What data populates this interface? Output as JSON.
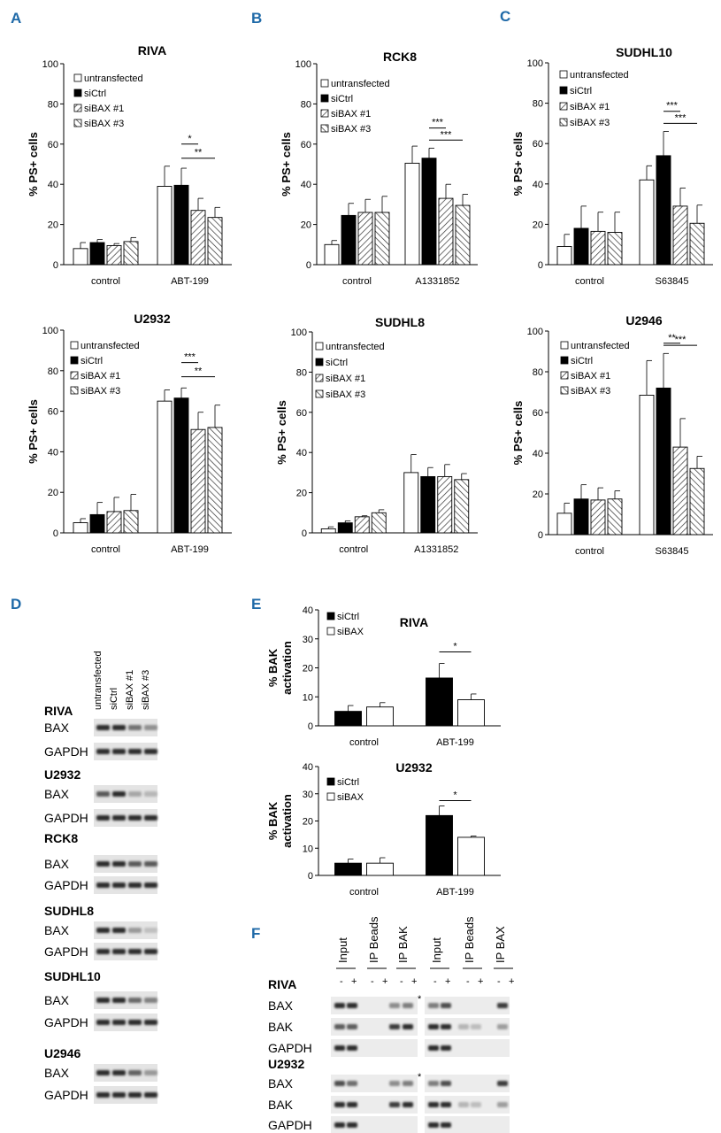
{
  "colors": {
    "panel_label": "#1f6aa8",
    "bar_dark": "#000000",
    "bar_light": "#ffffff",
    "band": "#555555"
  },
  "panel_labels": [
    "A",
    "B",
    "C",
    "D",
    "E",
    "F"
  ],
  "legend_A": [
    "untransfected",
    "siCtrl",
    "siBAX #1",
    "siBAX #3"
  ],
  "legend_E": [
    "siCtrl",
    "siBAX"
  ],
  "chart_data": [
    {
      "id": "riva",
      "panel": "A",
      "type": "bar",
      "title": "RIVA",
      "ylabel": "% PS+ cells",
      "ylim": [
        0,
        100
      ],
      "yticks": [
        0,
        20,
        40,
        60,
        80,
        100
      ],
      "categories": [
        "control",
        "ABT-199"
      ],
      "series": [
        {
          "name": "untransfected",
          "values": [
            8,
            39
          ],
          "errors": [
            3,
            10
          ]
        },
        {
          "name": "siCtrl",
          "values": [
            11,
            39.5
          ],
          "errors": [
            1.5,
            8.5
          ]
        },
        {
          "name": "siBAX #1",
          "values": [
            9.5,
            27
          ],
          "errors": [
            1,
            6
          ]
        },
        {
          "name": "siBAX #3",
          "values": [
            11.5,
            23.5
          ],
          "errors": [
            2,
            5
          ]
        }
      ],
      "significance": [
        {
          "from": 1,
          "to": 2,
          "y": 60,
          "label": "*"
        },
        {
          "from": 1,
          "to": 3,
          "y": 53,
          "label": "**"
        }
      ]
    },
    {
      "id": "rck8",
      "panel": "B",
      "type": "bar",
      "title": "RCK8",
      "ylabel": "% PS+ cells",
      "ylim": [
        0,
        100
      ],
      "yticks": [
        0,
        20,
        40,
        60,
        80,
        100
      ],
      "categories": [
        "control",
        "A1331852"
      ],
      "series": [
        {
          "name": "untransfected",
          "values": [
            10,
            50.5
          ],
          "errors": [
            2,
            8.5
          ]
        },
        {
          "name": "siCtrl",
          "values": [
            24.5,
            53
          ],
          "errors": [
            6,
            5
          ]
        },
        {
          "name": "siBAX #1",
          "values": [
            26,
            33
          ],
          "errors": [
            6.5,
            7
          ]
        },
        {
          "name": "siBAX #3",
          "values": [
            26,
            29.5
          ],
          "errors": [
            8,
            5.5
          ]
        }
      ],
      "significance": [
        {
          "from": 1,
          "to": 2,
          "y": 68,
          "label": "***"
        },
        {
          "from": 1,
          "to": 3,
          "y": 62,
          "label": "***"
        }
      ]
    },
    {
      "id": "sudhl10",
      "panel": "C",
      "type": "bar",
      "title": "SUDHL10",
      "ylabel": "% PS+ cells",
      "ylim": [
        0,
        100
      ],
      "yticks": [
        0,
        20,
        40,
        60,
        80,
        100
      ],
      "categories": [
        "control",
        "S63845"
      ],
      "series": [
        {
          "name": "untransfected",
          "values": [
            9,
            42
          ],
          "errors": [
            6,
            7
          ]
        },
        {
          "name": "siCtrl",
          "values": [
            18,
            54
          ],
          "errors": [
            11,
            12
          ]
        },
        {
          "name": "siBAX #1",
          "values": [
            16.5,
            29
          ],
          "errors": [
            9.5,
            9
          ]
        },
        {
          "name": "siBAX #3",
          "values": [
            16,
            20.5
          ],
          "errors": [
            10,
            9
          ]
        }
      ],
      "significance": [
        {
          "from": 1,
          "to": 2,
          "y": 76,
          "label": "***"
        },
        {
          "from": 1,
          "to": 3,
          "y": 70,
          "label": "***"
        }
      ]
    },
    {
      "id": "u2932",
      "panel": "A",
      "type": "bar",
      "title": "U2932",
      "ylabel": "% PS+ cells",
      "ylim": [
        0,
        100
      ],
      "yticks": [
        0,
        20,
        40,
        60,
        80,
        100
      ],
      "categories": [
        "control",
        "ABT-199"
      ],
      "series": [
        {
          "name": "untransfected",
          "values": [
            5,
            65
          ],
          "errors": [
            2,
            5.5
          ]
        },
        {
          "name": "siCtrl",
          "values": [
            9,
            66.5
          ],
          "errors": [
            6,
            5
          ]
        },
        {
          "name": "siBAX #1",
          "values": [
            10.5,
            51
          ],
          "errors": [
            7,
            8.5
          ]
        },
        {
          "name": "siBAX #3",
          "values": [
            11,
            52
          ],
          "errors": [
            8,
            11
          ]
        }
      ],
      "significance": [
        {
          "from": 1,
          "to": 2,
          "y": 84,
          "label": "***"
        },
        {
          "from": 1,
          "to": 3,
          "y": 77,
          "label": "**"
        }
      ]
    },
    {
      "id": "sudhl8",
      "panel": "B",
      "type": "bar",
      "title": "SUDHL8",
      "ylabel": "% PS+ cells",
      "ylim": [
        0,
        100
      ],
      "yticks": [
        0,
        20,
        40,
        60,
        80,
        100
      ],
      "categories": [
        "control",
        "A1331852"
      ],
      "series": [
        {
          "name": "untransfected",
          "values": [
            2,
            30
          ],
          "errors": [
            1,
            9
          ]
        },
        {
          "name": "siCtrl",
          "values": [
            5,
            28
          ],
          "errors": [
            1,
            4.5
          ]
        },
        {
          "name": "siBAX #1",
          "values": [
            8,
            28
          ],
          "errors": [
            0.5,
            6
          ]
        },
        {
          "name": "siBAX #3",
          "values": [
            10,
            26.5
          ],
          "errors": [
            1.5,
            3
          ]
        }
      ],
      "significance": []
    },
    {
      "id": "u2946",
      "panel": "C",
      "type": "bar",
      "title": "U2946",
      "ylabel": "% PS+ cells",
      "ylim": [
        0,
        100
      ],
      "yticks": [
        0,
        20,
        40,
        60,
        80,
        100
      ],
      "categories": [
        "control",
        "S63845"
      ],
      "series": [
        {
          "name": "untransfected",
          "values": [
            10.5,
            68.5
          ],
          "errors": [
            5,
            17
          ]
        },
        {
          "name": "siCtrl",
          "values": [
            17.5,
            72
          ],
          "errors": [
            7,
            17
          ]
        },
        {
          "name": "siBAX #1",
          "values": [
            17,
            43
          ],
          "errors": [
            6,
            14
          ]
        },
        {
          "name": "siBAX #3",
          "values": [
            17.5,
            32.5
          ],
          "errors": [
            4,
            6
          ]
        }
      ],
      "significance": [
        {
          "from": 1,
          "to": 2,
          "y": 94,
          "label": "**"
        },
        {
          "from": 1,
          "to": 3,
          "y": 93,
          "label": "***"
        }
      ]
    },
    {
      "id": "bak_riva",
      "panel": "E",
      "type": "bar",
      "title": "RIVA",
      "ylabel": "% BAK activation",
      "ylim": [
        0,
        40
      ],
      "yticks": [
        0,
        10,
        20,
        30,
        40
      ],
      "categories": [
        "control",
        "ABT-199"
      ],
      "series": [
        {
          "name": "siCtrl",
          "values": [
            5,
            16.5
          ],
          "errors": [
            2,
            5
          ]
        },
        {
          "name": "siBAX",
          "values": [
            6.5,
            9
          ],
          "errors": [
            1.5,
            2
          ]
        }
      ],
      "significance": [
        {
          "from": 0,
          "to": 1,
          "y": 25.5,
          "label": "*"
        }
      ]
    },
    {
      "id": "bak_u2932",
      "panel": "E",
      "type": "bar",
      "title": "U2932",
      "ylabel": "% BAK activation",
      "ylim": [
        0,
        40
      ],
      "yticks": [
        0,
        10,
        20,
        30,
        40
      ],
      "categories": [
        "control",
        "ABT-199"
      ],
      "series": [
        {
          "name": "siCtrl",
          "values": [
            4.5,
            22
          ],
          "errors": [
            1.5,
            3.5
          ]
        },
        {
          "name": "siBAX",
          "values": [
            4.5,
            14
          ],
          "errors": [
            2,
            0.5
          ]
        }
      ],
      "significance": [
        {
          "from": 0,
          "to": 1,
          "y": 27.5,
          "label": "*"
        }
      ]
    }
  ],
  "panel_D": {
    "lanes": [
      "untransfected",
      "siCtrl",
      "siBAX #1",
      "siBAX #3"
    ],
    "blots": [
      {
        "cell": "RIVA",
        "bax": [
          1,
          1,
          0.55,
          0.35
        ],
        "gapdh": [
          1,
          1,
          1,
          1
        ]
      },
      {
        "cell": "U2932",
        "bax": [
          0.7,
          1,
          0.2,
          0.1
        ],
        "gapdh": [
          1,
          1,
          1,
          1
        ]
      },
      {
        "cell": "RCK8",
        "bax": [
          1,
          1,
          0.7,
          0.7
        ],
        "gapdh": [
          1,
          1,
          1,
          1
        ]
      },
      {
        "cell": "SUDHL8",
        "bax": [
          1,
          1,
          0.3,
          0.05
        ],
        "gapdh": [
          1,
          1,
          1,
          1
        ]
      },
      {
        "cell": "SUDHL10",
        "bax": [
          1,
          1,
          0.6,
          0.45
        ],
        "gapdh": [
          1,
          1,
          1,
          1
        ]
      },
      {
        "cell": "U2946",
        "bax": [
          1,
          1,
          0.65,
          0.3
        ],
        "gapdh": [
          1,
          1,
          1,
          1
        ]
      }
    ],
    "rows": [
      "BAX",
      "GAPDH"
    ]
  },
  "panel_F": {
    "groups_left": [
      "Input",
      "IP Beads",
      "IP BAK"
    ],
    "groups_right": [
      "Input",
      "IP Beads",
      "IP BAX"
    ],
    "signs": [
      "-",
      "+"
    ],
    "star": "*",
    "cells": [
      {
        "cell": "RIVA",
        "rows": [
          "BAX",
          "BAK",
          "GAPDH"
        ]
      },
      {
        "cell": "U2932",
        "rows": [
          "BAX",
          "BAK",
          "GAPDH"
        ]
      }
    ]
  }
}
